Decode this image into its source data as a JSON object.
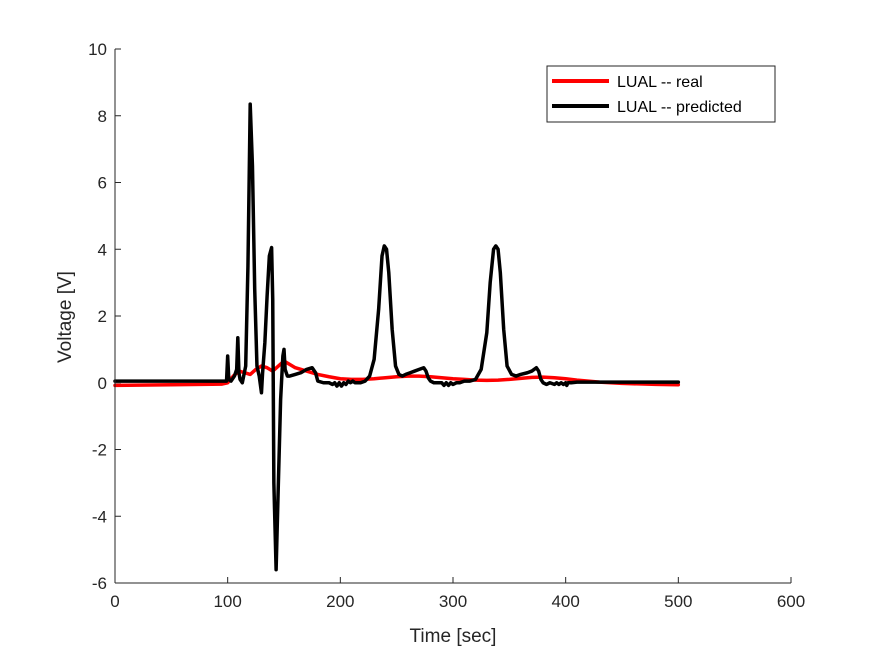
{
  "chart_data": {
    "type": "line",
    "xlabel": "Time [sec]",
    "ylabel": "Voltage [V]",
    "xlim": [
      0,
      600
    ],
    "ylim": [
      -6,
      10
    ],
    "xticks": [
      0,
      100,
      200,
      300,
      400,
      500,
      600
    ],
    "yticks": [
      -6,
      -4,
      -2,
      0,
      2,
      4,
      6,
      8,
      10
    ],
    "grid": false,
    "legend_position": "top-right",
    "series": [
      {
        "name": "LUAL -- real",
        "color": "#ff0000",
        "x": [
          0,
          50,
          95,
          100,
          105,
          110,
          115,
          120,
          125,
          130,
          135,
          140,
          145,
          150,
          155,
          160,
          170,
          180,
          190,
          200,
          210,
          220,
          230,
          240,
          250,
          260,
          270,
          280,
          290,
          300,
          310,
          320,
          330,
          340,
          350,
          360,
          370,
          380,
          390,
          400,
          410,
          420,
          430,
          440,
          450,
          460,
          480,
          500
        ],
        "y": [
          -0.08,
          -0.06,
          -0.04,
          0.0,
          0.2,
          0.35,
          0.3,
          0.25,
          0.4,
          0.5,
          0.45,
          0.35,
          0.5,
          0.65,
          0.55,
          0.45,
          0.35,
          0.25,
          0.18,
          0.12,
          0.1,
          0.1,
          0.12,
          0.15,
          0.18,
          0.2,
          0.2,
          0.18,
          0.15,
          0.12,
          0.1,
          0.08,
          0.07,
          0.08,
          0.1,
          0.13,
          0.16,
          0.17,
          0.15,
          0.12,
          0.08,
          0.05,
          0.02,
          0.0,
          -0.02,
          -0.03,
          -0.05,
          -0.06
        ]
      },
      {
        "name": "LUAL -- predicted",
        "color": "#000000",
        "x": [
          0,
          50,
          99,
          100,
          101,
          103,
          106,
          108,
          109,
          110,
          111,
          113,
          116,
          118,
          120,
          122,
          124,
          126,
          128,
          130,
          131,
          133,
          135,
          137,
          139,
          140,
          141,
          143,
          145,
          147,
          149,
          150,
          151,
          153,
          155,
          160,
          165,
          170,
          175,
          178,
          180,
          185,
          190,
          193,
          195,
          197,
          199,
          201,
          203,
          205,
          207,
          209,
          211,
          213,
          215,
          218,
          222,
          226,
          230,
          234,
          237,
          239,
          241,
          243,
          246,
          249,
          252,
          255,
          258,
          262,
          266,
          270,
          274,
          276,
          278,
          280,
          283,
          286,
          290,
          292,
          294,
          296,
          298,
          300,
          303,
          306,
          310,
          315,
          320,
          325,
          330,
          333,
          336,
          338,
          340,
          342,
          345,
          348,
          352,
          356,
          360,
          366,
          370,
          374,
          376,
          378,
          380,
          383,
          386,
          390,
          392,
          394,
          396,
          398,
          400,
          401,
          402,
          405,
          410,
          450,
          500
        ],
        "y": [
          0.05,
          0.05,
          0.05,
          0.8,
          0.1,
          0.05,
          0.2,
          0.4,
          1.35,
          0.3,
          0.1,
          0.0,
          0.5,
          3.5,
          8.35,
          6.5,
          2.8,
          0.5,
          0.2,
          -0.3,
          0.3,
          1.2,
          2.6,
          3.8,
          4.05,
          2.5,
          -3.0,
          -5.6,
          -3.0,
          -0.5,
          0.8,
          1.0,
          0.4,
          0.2,
          0.2,
          0.25,
          0.3,
          0.4,
          0.45,
          0.3,
          0.05,
          0.0,
          0.0,
          -0.05,
          0.0,
          -0.1,
          0.0,
          -0.1,
          0.0,
          -0.05,
          0.05,
          0.0,
          0.05,
          0.0,
          0.0,
          0.0,
          0.05,
          0.2,
          0.7,
          2.2,
          3.8,
          4.1,
          4.0,
          3.3,
          1.6,
          0.5,
          0.25,
          0.2,
          0.25,
          0.3,
          0.35,
          0.4,
          0.45,
          0.35,
          0.15,
          0.05,
          0.0,
          0.0,
          0.0,
          -0.08,
          0.0,
          -0.08,
          0.0,
          -0.05,
          0.0,
          0.0,
          0.05,
          0.05,
          0.1,
          0.4,
          1.5,
          3.0,
          4.0,
          4.1,
          4.0,
          3.3,
          1.6,
          0.5,
          0.25,
          0.2,
          0.25,
          0.3,
          0.35,
          0.45,
          0.35,
          0.1,
          0.0,
          -0.05,
          0.0,
          -0.05,
          0.0,
          -0.05,
          0.0,
          -0.05,
          0.0,
          -0.08,
          0.0,
          0.0,
          0.02,
          0.02,
          0.02
        ]
      }
    ]
  }
}
